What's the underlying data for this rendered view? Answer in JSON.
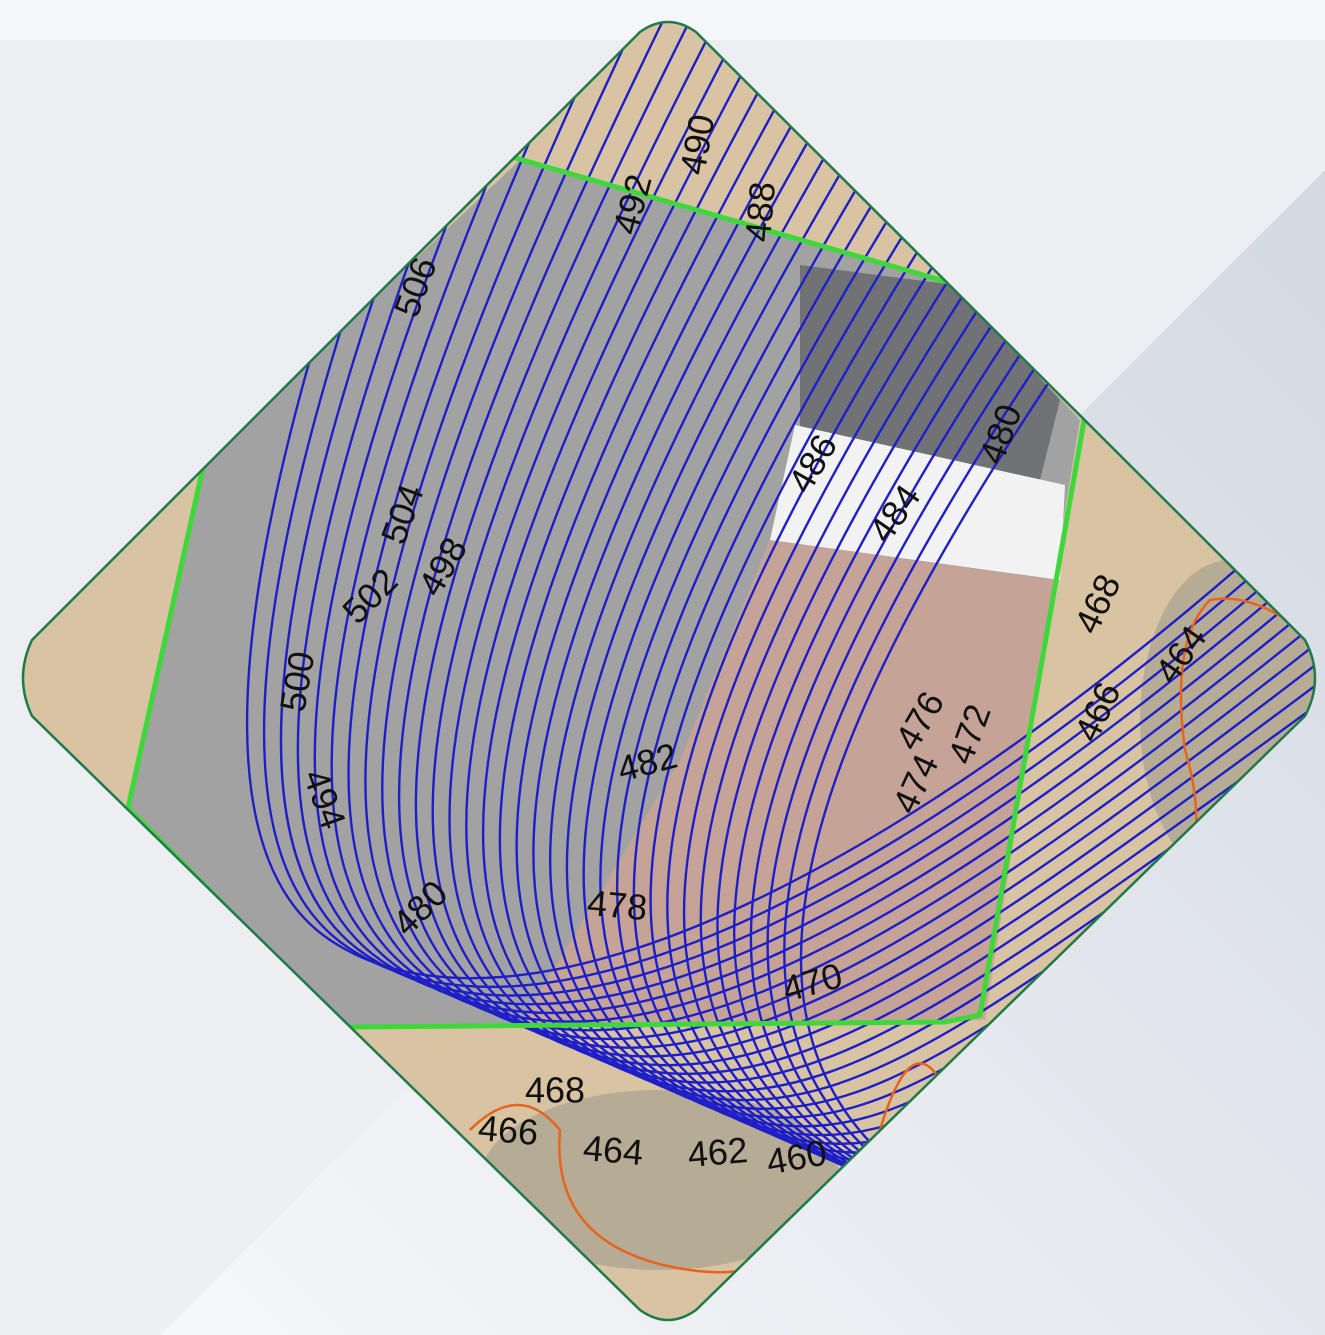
{
  "map": {
    "contour_labels": [
      "490",
      "492",
      "488",
      "506",
      "486",
      "480",
      "484",
      "504",
      "498",
      "502",
      "500",
      "494",
      "482",
      "476",
      "474",
      "472",
      "468",
      "466",
      "464",
      "478",
      "480",
      "470",
      "468",
      "466",
      "464",
      "462",
      "460"
    ]
  }
}
